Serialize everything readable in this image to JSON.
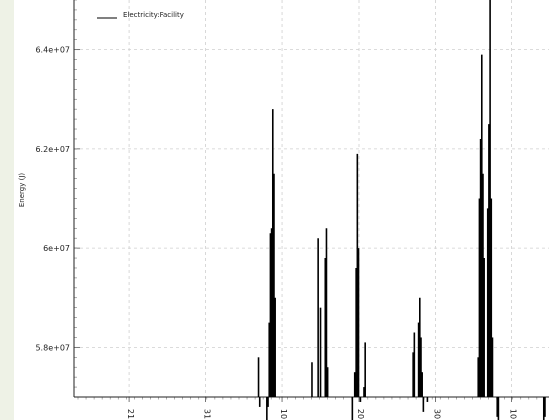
{
  "chart_data": {
    "type": "line",
    "title": "",
    "xlabel": "",
    "ylabel": "Energy (J)",
    "ylim": [
      57000000,
      65000000
    ],
    "y_ticks": [
      {
        "value": 58000000,
        "label": "5.8e+07"
      },
      {
        "value": 60000000,
        "label": "6e+07"
      },
      {
        "value": 62000000,
        "label": "6.2e+07"
      },
      {
        "value": 64000000,
        "label": "6.4e+07"
      }
    ],
    "x_range": [
      0,
      100
    ],
    "x_ticks": [
      {
        "value": 11.6,
        "label": "21"
      },
      {
        "value": 27.7,
        "label": "31"
      },
      {
        "value": 43.8,
        "label": "10"
      },
      {
        "value": 60.0,
        "label": "20"
      },
      {
        "value": 76.1,
        "label": "30"
      },
      {
        "value": 92.1,
        "label": "10"
      }
    ],
    "grid": true,
    "legend_position": "top-left",
    "series": [
      {
        "name": "Electricity:Facility",
        "color": "#000000",
        "spikes": [
          [
            38.85,
            57800000
          ],
          [
            39.1,
            56800000
          ],
          [
            40.6,
            56500000
          ],
          [
            40.85,
            56800000
          ],
          [
            41.1,
            58500000
          ],
          [
            41.35,
            60300000
          ],
          [
            41.6,
            60400000
          ],
          [
            41.85,
            62800000
          ],
          [
            42.1,
            61500000
          ],
          [
            42.35,
            59000000
          ],
          [
            50.1,
            57700000
          ],
          [
            50.35,
            57000000
          ],
          [
            51.4,
            60200000
          ],
          [
            51.65,
            57000000
          ],
          [
            51.9,
            58800000
          ],
          [
            52.9,
            59800000
          ],
          [
            53.15,
            60400000
          ],
          [
            53.4,
            57600000
          ],
          [
            58.6,
            56500000
          ],
          [
            59.1,
            57500000
          ],
          [
            59.4,
            59600000
          ],
          [
            59.65,
            61900000
          ],
          [
            59.9,
            60000000
          ],
          [
            60.3,
            56900000
          ],
          [
            61.05,
            57200000
          ],
          [
            61.3,
            58100000
          ],
          [
            61.55,
            57000000
          ],
          [
            71.4,
            57900000
          ],
          [
            71.65,
            58300000
          ],
          [
            72.55,
            58500000
          ],
          [
            72.8,
            59000000
          ],
          [
            73.05,
            58200000
          ],
          [
            73.3,
            57500000
          ],
          [
            73.55,
            56700000
          ],
          [
            74.15,
            57000000
          ],
          [
            74.4,
            56900000
          ],
          [
            85.1,
            57800000
          ],
          [
            85.35,
            61000000
          ],
          [
            85.6,
            62200000
          ],
          [
            85.85,
            63900000
          ],
          [
            86.1,
            61500000
          ],
          [
            86.35,
            59800000
          ],
          [
            87.1,
            60800000
          ],
          [
            87.35,
            62500000
          ],
          [
            87.6,
            65500000
          ],
          [
            87.85,
            61000000
          ],
          [
            88.1,
            58200000
          ],
          [
            89.1,
            56600000
          ],
          [
            89.35,
            56500000
          ],
          [
            98.9,
            56400000
          ],
          [
            99.15,
            56600000
          ]
        ]
      }
    ]
  }
}
